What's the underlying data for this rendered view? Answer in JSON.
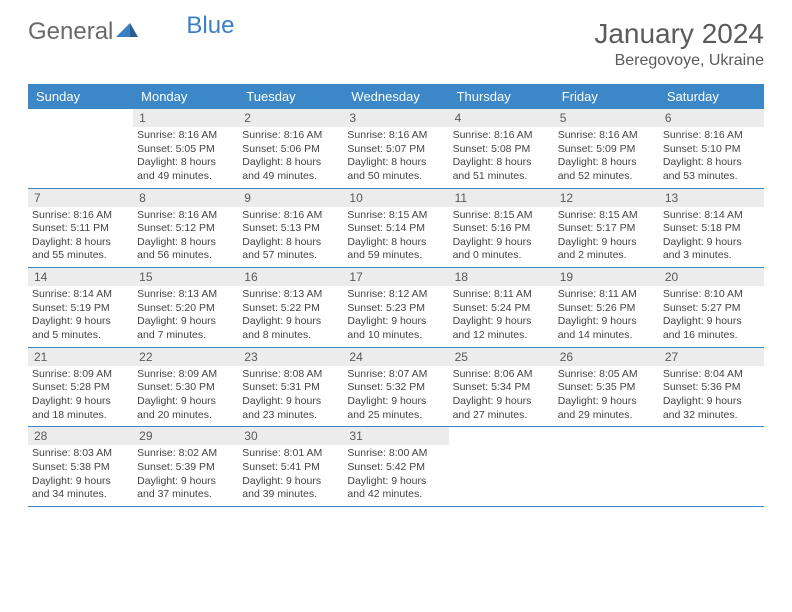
{
  "brand": {
    "part1": "General",
    "part2": "Blue"
  },
  "title": "January 2024",
  "location": "Beregovoye, Ukraine",
  "colors": {
    "header_bg": "#3b87c8",
    "header_fg": "#ffffff",
    "daynum_bg": "#ececec",
    "text": "#5a5a5a",
    "rule": "#3b87c8"
  },
  "day_names": [
    "Sunday",
    "Monday",
    "Tuesday",
    "Wednesday",
    "Thursday",
    "Friday",
    "Saturday"
  ],
  "weeks": [
    [
      null,
      {
        "n": "1",
        "sr": "8:16 AM",
        "ss": "5:05 PM",
        "dl": "8 hours and 49 minutes."
      },
      {
        "n": "2",
        "sr": "8:16 AM",
        "ss": "5:06 PM",
        "dl": "8 hours and 49 minutes."
      },
      {
        "n": "3",
        "sr": "8:16 AM",
        "ss": "5:07 PM",
        "dl": "8 hours and 50 minutes."
      },
      {
        "n": "4",
        "sr": "8:16 AM",
        "ss": "5:08 PM",
        "dl": "8 hours and 51 minutes."
      },
      {
        "n": "5",
        "sr": "8:16 AM",
        "ss": "5:09 PM",
        "dl": "8 hours and 52 minutes."
      },
      {
        "n": "6",
        "sr": "8:16 AM",
        "ss": "5:10 PM",
        "dl": "8 hours and 53 minutes."
      }
    ],
    [
      {
        "n": "7",
        "sr": "8:16 AM",
        "ss": "5:11 PM",
        "dl": "8 hours and 55 minutes."
      },
      {
        "n": "8",
        "sr": "8:16 AM",
        "ss": "5:12 PM",
        "dl": "8 hours and 56 minutes."
      },
      {
        "n": "9",
        "sr": "8:16 AM",
        "ss": "5:13 PM",
        "dl": "8 hours and 57 minutes."
      },
      {
        "n": "10",
        "sr": "8:15 AM",
        "ss": "5:14 PM",
        "dl": "8 hours and 59 minutes."
      },
      {
        "n": "11",
        "sr": "8:15 AM",
        "ss": "5:16 PM",
        "dl": "9 hours and 0 minutes."
      },
      {
        "n": "12",
        "sr": "8:15 AM",
        "ss": "5:17 PM",
        "dl": "9 hours and 2 minutes."
      },
      {
        "n": "13",
        "sr": "8:14 AM",
        "ss": "5:18 PM",
        "dl": "9 hours and 3 minutes."
      }
    ],
    [
      {
        "n": "14",
        "sr": "8:14 AM",
        "ss": "5:19 PM",
        "dl": "9 hours and 5 minutes."
      },
      {
        "n": "15",
        "sr": "8:13 AM",
        "ss": "5:20 PM",
        "dl": "9 hours and 7 minutes."
      },
      {
        "n": "16",
        "sr": "8:13 AM",
        "ss": "5:22 PM",
        "dl": "9 hours and 8 minutes."
      },
      {
        "n": "17",
        "sr": "8:12 AM",
        "ss": "5:23 PM",
        "dl": "9 hours and 10 minutes."
      },
      {
        "n": "18",
        "sr": "8:11 AM",
        "ss": "5:24 PM",
        "dl": "9 hours and 12 minutes."
      },
      {
        "n": "19",
        "sr": "8:11 AM",
        "ss": "5:26 PM",
        "dl": "9 hours and 14 minutes."
      },
      {
        "n": "20",
        "sr": "8:10 AM",
        "ss": "5:27 PM",
        "dl": "9 hours and 16 minutes."
      }
    ],
    [
      {
        "n": "21",
        "sr": "8:09 AM",
        "ss": "5:28 PM",
        "dl": "9 hours and 18 minutes."
      },
      {
        "n": "22",
        "sr": "8:09 AM",
        "ss": "5:30 PM",
        "dl": "9 hours and 20 minutes."
      },
      {
        "n": "23",
        "sr": "8:08 AM",
        "ss": "5:31 PM",
        "dl": "9 hours and 23 minutes."
      },
      {
        "n": "24",
        "sr": "8:07 AM",
        "ss": "5:32 PM",
        "dl": "9 hours and 25 minutes."
      },
      {
        "n": "25",
        "sr": "8:06 AM",
        "ss": "5:34 PM",
        "dl": "9 hours and 27 minutes."
      },
      {
        "n": "26",
        "sr": "8:05 AM",
        "ss": "5:35 PM",
        "dl": "9 hours and 29 minutes."
      },
      {
        "n": "27",
        "sr": "8:04 AM",
        "ss": "5:36 PM",
        "dl": "9 hours and 32 minutes."
      }
    ],
    [
      {
        "n": "28",
        "sr": "8:03 AM",
        "ss": "5:38 PM",
        "dl": "9 hours and 34 minutes."
      },
      {
        "n": "29",
        "sr": "8:02 AM",
        "ss": "5:39 PM",
        "dl": "9 hours and 37 minutes."
      },
      {
        "n": "30",
        "sr": "8:01 AM",
        "ss": "5:41 PM",
        "dl": "9 hours and 39 minutes."
      },
      {
        "n": "31",
        "sr": "8:00 AM",
        "ss": "5:42 PM",
        "dl": "9 hours and 42 minutes."
      },
      null,
      null,
      null
    ]
  ],
  "labels": {
    "sunrise": "Sunrise:",
    "sunset": "Sunset:",
    "daylight": "Daylight:"
  }
}
